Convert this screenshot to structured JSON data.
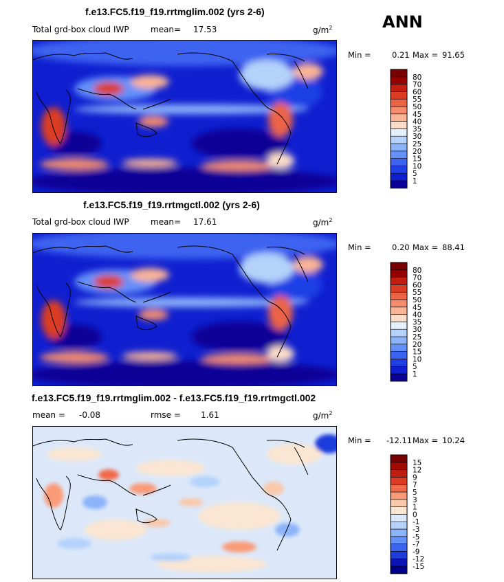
{
  "header": {
    "season": "ANN"
  },
  "chart_data": [
    {
      "type": "heatmap",
      "title": "f.e13.FC5.f19_f19.rrtmglim.002 (yrs 2-6)",
      "variable": "Total grd-box cloud IWP",
      "mean_label": "mean=",
      "mean_value": "17.53",
      "units": "g/m",
      "units_exp": "2",
      "min_label": "Min =",
      "min_value": "0.21",
      "max_label": "Max =",
      "max_value": "91.65",
      "colorbar_levels": [
        "1",
        "5",
        "10",
        "15",
        "20",
        "25",
        "30",
        "35",
        "40",
        "45",
        "50",
        "55",
        "60",
        "70",
        "80"
      ],
      "colorbar_colors": [
        "#0a0096",
        "#0f1fd0",
        "#1e40e6",
        "#3c64f0",
        "#6490fa",
        "#8cb4fa",
        "#b4d2fa",
        "#e6f0fc",
        "#fadcc8",
        "#fab496",
        "#f58c6e",
        "#eb6446",
        "#dc3c23",
        "#c31e0f",
        "#960000",
        "#780000"
      ]
    },
    {
      "type": "heatmap",
      "title": "f.e13.FC5.f19_f19.rrtmgctl.002 (yrs 2-6)",
      "variable": "Total grd-box cloud IWP",
      "mean_label": "mean=",
      "mean_value": "17.61",
      "units": "g/m",
      "units_exp": "2",
      "min_label": "Min =",
      "min_value": "0.20",
      "max_label": "Max =",
      "max_value": "88.41",
      "colorbar_levels": [
        "1",
        "5",
        "10",
        "15",
        "20",
        "25",
        "30",
        "35",
        "40",
        "45",
        "50",
        "55",
        "60",
        "70",
        "80"
      ],
      "colorbar_colors": [
        "#0a0096",
        "#0f1fd0",
        "#1e40e6",
        "#3c64f0",
        "#6490fa",
        "#8cb4fa",
        "#b4d2fa",
        "#e6f0fc",
        "#fadcc8",
        "#fab496",
        "#f58c6e",
        "#eb6446",
        "#dc3c23",
        "#c31e0f",
        "#960000",
        "#780000"
      ]
    },
    {
      "type": "heatmap",
      "title": "f.e13.FC5.f19_f19.rrtmglim.002 - f.e13.FC5.f19_f19.rrtmgctl.002",
      "mean_label": "mean =",
      "mean_value": "-0.08",
      "rmse_label": "rmse =",
      "rmse_value": "1.61",
      "units": "g/m",
      "units_exp": "2",
      "min_label": "Min =",
      "min_value": "-12.11",
      "max_label": "Max =",
      "max_value": "10.24",
      "colorbar_levels": [
        "-15",
        "-12",
        "-9",
        "-7",
        "-5",
        "-3",
        "-1",
        "0",
        "1",
        "3",
        "5",
        "7",
        "9",
        "12",
        "15"
      ],
      "colorbar_colors": [
        "#00008c",
        "#0a14b4",
        "#1e3cdc",
        "#3c64f0",
        "#6490fa",
        "#8cb4fa",
        "#b4d2fa",
        "#dce8fa",
        "#fae6d2",
        "#fac8aa",
        "#fa9b78",
        "#f0694b",
        "#dc3c23",
        "#be1e0f",
        "#a00a00",
        "#780000"
      ]
    }
  ]
}
